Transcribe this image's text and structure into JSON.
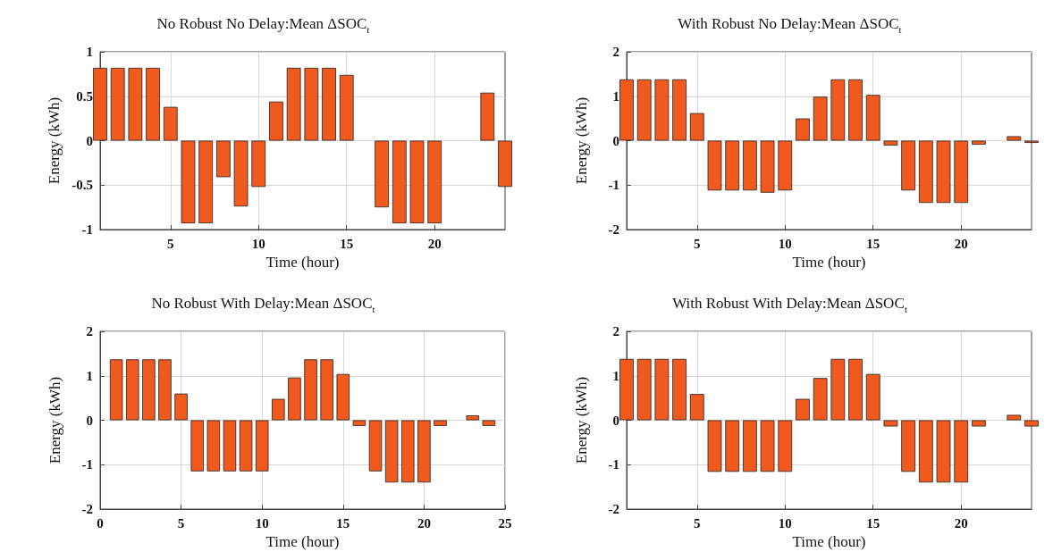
{
  "chart_data": [
    {
      "type": "bar",
      "title": "No Robust No Delay:Mean ΔSOC$_{t}$",
      "xlabel": "Time (hour)",
      "ylabel": "Energy (kWh)",
      "x": [
        1,
        2,
        3,
        4,
        5,
        6,
        7,
        8,
        9,
        10,
        11,
        12,
        13,
        14,
        15,
        16,
        17,
        18,
        19,
        20,
        21,
        22,
        23,
        24
      ],
      "values": [
        0.82,
        0.82,
        0.82,
        0.82,
        0.38,
        -0.93,
        -0.93,
        -0.41,
        -0.74,
        -0.52,
        0.44,
        0.82,
        0.82,
        0.82,
        0.74,
        0,
        -0.75,
        -0.93,
        -0.93,
        -0.93,
        0,
        0,
        0.54,
        -0.52
      ],
      "color": "#f05a1e",
      "xlim": [
        1,
        24
      ],
      "xticks": [
        5,
        10,
        15,
        20
      ],
      "ylim": [
        -1,
        1
      ],
      "yticks": [
        -1,
        -0.5,
        0,
        0.5,
        1
      ],
      "grid": true
    },
    {
      "type": "bar",
      "title": "With Robust No Delay:Mean ΔSOC$_{t}$",
      "xlabel": "Time (hour)",
      "ylabel": "Energy (kWh)",
      "x": [
        1,
        2,
        3,
        4,
        5,
        6,
        7,
        8,
        9,
        10,
        11,
        12,
        13,
        14,
        15,
        16,
        17,
        18,
        19,
        20,
        21,
        22,
        23,
        24
      ],
      "values": [
        1.38,
        1.38,
        1.38,
        1.38,
        0.62,
        -1.12,
        -1.12,
        -1.12,
        -1.17,
        -1.12,
        0.5,
        0.99,
        1.38,
        1.38,
        1.03,
        -0.11,
        -1.12,
        -1.4,
        -1.4,
        -1.4,
        -0.09,
        0,
        0.1,
        -0.05
      ],
      "color": "#f05a1e",
      "xlim": [
        1,
        24
      ],
      "xticks": [
        5,
        10,
        15,
        20
      ],
      "ylim": [
        -2,
        2
      ],
      "yticks": [
        -2,
        -1,
        0,
        1,
        2
      ],
      "grid": true
    },
    {
      "type": "bar",
      "title": "No Robust With Delay:Mean ΔSOC$_{t}$",
      "xlabel": "Time (hour)",
      "ylabel": "Energy (kWh)",
      "x": [
        1,
        2,
        3,
        4,
        5,
        6,
        7,
        8,
        9,
        10,
        11,
        12,
        13,
        14,
        15,
        16,
        17,
        18,
        19,
        20,
        21,
        22,
        23,
        24
      ],
      "values": [
        1.37,
        1.37,
        1.37,
        1.37,
        0.6,
        -1.15,
        -1.15,
        -1.15,
        -1.15,
        -1.15,
        0.48,
        0.96,
        1.37,
        1.37,
        1.04,
        -0.13,
        -1.15,
        -1.4,
        -1.4,
        -1.4,
        -0.13,
        0,
        0.11,
        -0.13
      ],
      "color": "#f05a1e",
      "xlim": [
        0,
        25
      ],
      "xticks": [
        0,
        5,
        10,
        15,
        20,
        25
      ],
      "ylim": [
        -2,
        2
      ],
      "yticks": [
        -2,
        -1,
        0,
        1,
        2
      ],
      "grid": true
    },
    {
      "type": "bar",
      "title": "With Robust With Delay:Mean ΔSOC$_{t}$",
      "xlabel": "Time (hour)",
      "ylabel": "Energy (kWh)",
      "x": [
        1,
        2,
        3,
        4,
        5,
        6,
        7,
        8,
        9,
        10,
        11,
        12,
        13,
        14,
        15,
        16,
        17,
        18,
        19,
        20,
        21,
        22,
        23,
        24
      ],
      "values": [
        1.38,
        1.38,
        1.38,
        1.38,
        0.59,
        -1.16,
        -1.16,
        -1.16,
        -1.16,
        -1.16,
        0.48,
        0.95,
        1.38,
        1.38,
        1.04,
        -0.14,
        -1.16,
        -1.4,
        -1.4,
        -1.4,
        -0.14,
        0,
        0.12,
        -0.14
      ],
      "color": "#f05a1e",
      "xlim": [
        1,
        24
      ],
      "xticks": [
        5,
        10,
        15,
        20
      ],
      "ylim": [
        -2,
        2
      ],
      "yticks": [
        -2,
        -1,
        0,
        1,
        2
      ],
      "grid": true
    }
  ]
}
